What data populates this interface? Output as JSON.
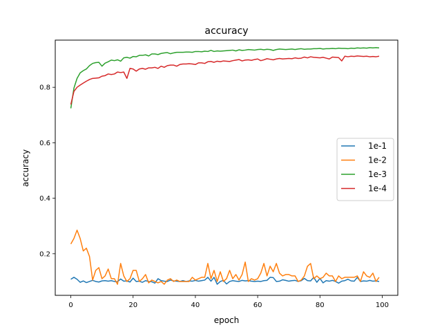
{
  "chart_data": {
    "type": "line",
    "title": "accuracy",
    "xlabel": "epoch",
    "ylabel": "accuracy",
    "xlim": [
      -5,
      105
    ],
    "ylim": [
      0.05,
      0.97
    ],
    "xticks": [
      0,
      20,
      40,
      60,
      80,
      100
    ],
    "yticks": [
      0.2,
      0.4,
      0.6,
      0.8
    ],
    "xtick_labels": [
      "0",
      "20",
      "40",
      "60",
      "80",
      "100"
    ],
    "ytick_labels": [
      "0.2",
      "0.4",
      "0.6",
      "0.8"
    ],
    "grid": false,
    "legend_position": "center-right",
    "x": [
      0,
      1,
      2,
      3,
      4,
      5,
      6,
      7,
      8,
      9,
      10,
      11,
      12,
      13,
      14,
      15,
      16,
      17,
      18,
      19,
      20,
      21,
      22,
      23,
      24,
      25,
      26,
      27,
      28,
      29,
      30,
      31,
      32,
      33,
      34,
      35,
      36,
      37,
      38,
      39,
      40,
      41,
      42,
      43,
      44,
      45,
      46,
      47,
      48,
      49,
      50,
      51,
      52,
      53,
      54,
      55,
      56,
      57,
      58,
      59,
      60,
      61,
      62,
      63,
      64,
      65,
      66,
      67,
      68,
      69,
      70,
      71,
      72,
      73,
      74,
      75,
      76,
      77,
      78,
      79,
      80,
      81,
      82,
      83,
      84,
      85,
      86,
      87,
      88,
      89,
      90,
      91,
      92,
      93,
      94,
      95,
      96,
      97,
      98,
      99
    ],
    "series": [
      {
        "name": "1e-1",
        "color": "#1f77b4",
        "values": [
          0.108,
          0.115,
          0.108,
          0.097,
          0.102,
          0.096,
          0.1,
          0.104,
          0.1,
          0.098,
          0.102,
          0.103,
          0.101,
          0.103,
          0.1,
          0.099,
          0.109,
          0.101,
          0.102,
          0.098,
          0.112,
          0.1,
          0.101,
          0.097,
          0.103,
          0.1,
          0.099,
          0.094,
          0.11,
          0.103,
          0.101,
          0.1,
          0.105,
          0.102,
          0.101,
          0.1,
          0.103,
          0.1,
          0.102,
          0.101,
          0.104,
          0.101,
          0.103,
          0.105,
          0.115,
          0.101,
          0.115,
          0.09,
          0.1,
          0.104,
          0.091,
          0.1,
          0.103,
          0.101,
          0.1,
          0.104,
          0.102,
          0.103,
          0.101,
          0.1,
          0.101,
          0.1,
          0.103,
          0.104,
          0.115,
          0.114,
          0.1,
          0.101,
          0.106,
          0.104,
          0.101,
          0.103,
          0.104,
          0.1,
          0.103,
          0.111,
          0.103,
          0.102,
          0.115,
          0.097,
          0.111,
          0.095,
          0.103,
          0.101,
          0.104,
          0.1,
          0.094,
          0.101,
          0.103,
          0.108,
          0.102,
          0.101,
          0.115,
          0.1,
          0.102,
          0.101,
          0.104,
          0.101,
          0.102,
          0.1
        ]
      },
      {
        "name": "1e-2",
        "color": "#ff7f0e",
        "values": [
          0.235,
          0.255,
          0.285,
          0.255,
          0.21,
          0.22,
          0.19,
          0.105,
          0.14,
          0.15,
          0.11,
          0.12,
          0.145,
          0.11,
          0.11,
          0.09,
          0.165,
          0.12,
          0.1,
          0.11,
          0.14,
          0.14,
          0.1,
          0.11,
          0.125,
          0.095,
          0.105,
          0.1,
          0.095,
          0.1,
          0.09,
          0.105,
          0.11,
          0.1,
          0.105,
          0.1,
          0.1,
          0.1,
          0.1,
          0.115,
          0.105,
          0.11,
          0.115,
          0.115,
          0.165,
          0.11,
          0.14,
          0.1,
          0.135,
          0.1,
          0.11,
          0.14,
          0.11,
          0.125,
          0.105,
          0.125,
          0.17,
          0.1,
          0.11,
          0.105,
          0.11,
          0.13,
          0.165,
          0.12,
          0.155,
          0.135,
          0.165,
          0.13,
          0.12,
          0.125,
          0.125,
          0.12,
          0.12,
          0.1,
          0.105,
          0.12,
          0.155,
          0.165,
          0.11,
          0.12,
          0.11,
          0.115,
          0.13,
          0.12,
          0.12,
          0.1,
          0.12,
          0.11,
          0.115,
          0.115,
          0.115,
          0.115,
          0.12,
          0.1,
          0.135,
          0.12,
          0.115,
          0.13,
          0.1,
          0.115
        ]
      },
      {
        "name": "1e-3",
        "color": "#2ca02c",
        "values": [
          0.724,
          0.797,
          0.832,
          0.852,
          0.86,
          0.866,
          0.878,
          0.886,
          0.889,
          0.89,
          0.876,
          0.887,
          0.892,
          0.898,
          0.896,
          0.899,
          0.894,
          0.906,
          0.908,
          0.905,
          0.911,
          0.91,
          0.915,
          0.915,
          0.917,
          0.913,
          0.92,
          0.92,
          0.918,
          0.922,
          0.924,
          0.925,
          0.921,
          0.924,
          0.926,
          0.926,
          0.926,
          0.927,
          0.927,
          0.926,
          0.929,
          0.929,
          0.928,
          0.93,
          0.929,
          0.933,
          0.929,
          0.931,
          0.93,
          0.931,
          0.932,
          0.933,
          0.934,
          0.931,
          0.935,
          0.933,
          0.934,
          0.936,
          0.935,
          0.934,
          0.936,
          0.937,
          0.935,
          0.937,
          0.936,
          0.933,
          0.936,
          0.938,
          0.937,
          0.936,
          0.937,
          0.938,
          0.936,
          0.938,
          0.939,
          0.937,
          0.938,
          0.938,
          0.939,
          0.939,
          0.94,
          0.938,
          0.939,
          0.939,
          0.94,
          0.939,
          0.941,
          0.94,
          0.94,
          0.939,
          0.941,
          0.94,
          0.942,
          0.941,
          0.942,
          0.941,
          0.943,
          0.942,
          0.943,
          0.942
        ]
      },
      {
        "name": "1e-4",
        "color": "#d62728",
        "values": [
          0.738,
          0.785,
          0.8,
          0.808,
          0.815,
          0.822,
          0.828,
          0.832,
          0.833,
          0.834,
          0.84,
          0.842,
          0.848,
          0.846,
          0.848,
          0.855,
          0.853,
          0.855,
          0.832,
          0.868,
          0.866,
          0.858,
          0.866,
          0.868,
          0.865,
          0.87,
          0.87,
          0.872,
          0.868,
          0.876,
          0.872,
          0.878,
          0.88,
          0.88,
          0.876,
          0.882,
          0.884,
          0.884,
          0.885,
          0.884,
          0.882,
          0.888,
          0.888,
          0.886,
          0.892,
          0.893,
          0.89,
          0.894,
          0.892,
          0.895,
          0.894,
          0.893,
          0.896,
          0.898,
          0.9,
          0.895,
          0.898,
          0.899,
          0.897,
          0.9,
          0.902,
          0.896,
          0.899,
          0.903,
          0.901,
          0.899,
          0.902,
          0.904,
          0.902,
          0.903,
          0.904,
          0.903,
          0.906,
          0.904,
          0.905,
          0.909,
          0.906,
          0.91,
          0.908,
          0.907,
          0.906,
          0.908,
          0.905,
          0.902,
          0.909,
          0.908,
          0.907,
          0.895,
          0.912,
          0.91,
          0.912,
          0.911,
          0.913,
          0.912,
          0.911,
          0.912,
          0.91,
          0.911,
          0.91,
          0.912
        ]
      }
    ]
  }
}
